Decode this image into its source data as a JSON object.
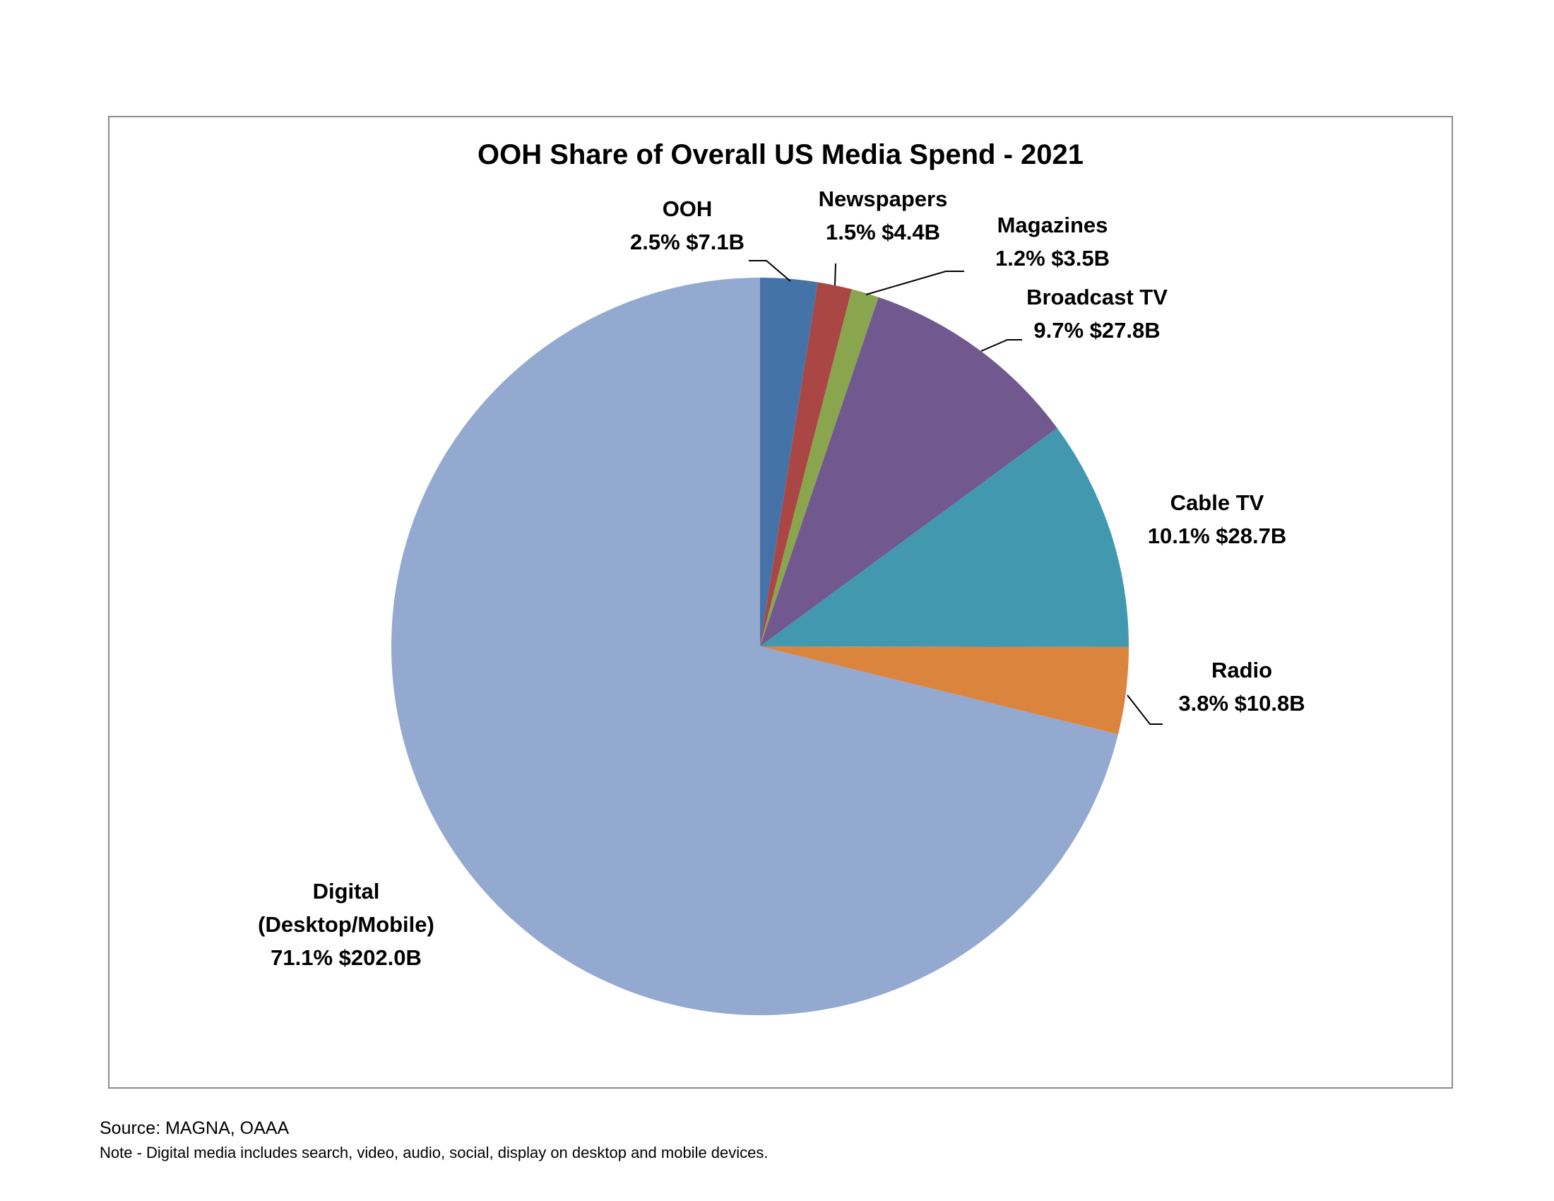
{
  "chart_data": {
    "type": "pie",
    "title": "OOH Share of Overall US Media Spend - 2021",
    "slices": [
      {
        "name": "OOH",
        "percent": 2.5,
        "value": "$7.1B",
        "value_billions": 7.1,
        "color": "#4572a7",
        "label_lines": [
          "OOH",
          "2.5%  $7.1B"
        ]
      },
      {
        "name": "Newspapers",
        "percent": 1.5,
        "value": "$4.4B",
        "value_billions": 4.4,
        "color": "#aa4643",
        "label_lines": [
          "Newspapers",
          "1.5%  $4.4B"
        ]
      },
      {
        "name": "Magazines",
        "percent": 1.2,
        "value": "$3.5B",
        "value_billions": 3.5,
        "color": "#89a54e",
        "label_lines": [
          "Magazines",
          "1.2%  $3.5B"
        ]
      },
      {
        "name": "Broadcast TV",
        "percent": 9.7,
        "value": "$27.8B",
        "value_billions": 27.8,
        "color": "#71588f",
        "label_lines": [
          "Broadcast TV",
          "9.7%  $27.8B"
        ]
      },
      {
        "name": "Cable TV",
        "percent": 10.1,
        "value": "$28.7B",
        "value_billions": 28.7,
        "color": "#4198af",
        "label_lines": [
          "Cable TV",
          "10.1%  $28.7B"
        ]
      },
      {
        "name": "Radio",
        "percent": 3.8,
        "value": "$10.8B",
        "value_billions": 10.8,
        "color": "#db843d",
        "label_lines": [
          "Radio",
          "3.8%  $10.8B"
        ]
      },
      {
        "name": "Digital (Desktop/Mobile)",
        "percent": 71.1,
        "value": "$202.0B",
        "value_billions": 202.0,
        "color": "#93a9cf",
        "label_lines": [
          "Digital",
          "(Desktop/Mobile)",
          "71.1%  $202.0B"
        ]
      }
    ],
    "start_angle": "12 o'clock",
    "direction": "clockwise",
    "legend": "none"
  },
  "footer": {
    "source": "Source: MAGNA, OAAA",
    "note": "Note - Digital media includes search, video, audio, social, display on desktop and mobile devices."
  }
}
